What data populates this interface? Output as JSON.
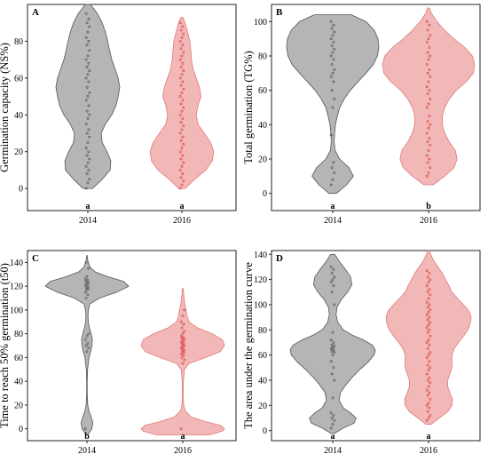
{
  "colors": {
    "y2014_fill": "#b4b5b7",
    "y2014_stroke": "#555555",
    "y2016_fill": "#f2b8b8",
    "y2016_stroke": "#e07b7b"
  },
  "chart_data": [
    {
      "type": "violin",
      "panel": "A",
      "ylabel": "Germination capacity (NS%)",
      "categories": [
        "2014",
        "2016"
      ],
      "letters": [
        "a",
        "a"
      ],
      "ylim": [
        -12,
        100
      ],
      "yticks": [
        0,
        20,
        40,
        60,
        80
      ],
      "series": [
        {
          "density": [
            [
              0,
              0.15
            ],
            [
              5,
              0.45
            ],
            [
              10,
              0.7
            ],
            [
              15,
              0.72
            ],
            [
              20,
              0.6
            ],
            [
              25,
              0.45
            ],
            [
              30,
              0.42
            ],
            [
              35,
              0.55
            ],
            [
              40,
              0.75
            ],
            [
              45,
              0.88
            ],
            [
              50,
              0.95
            ],
            [
              55,
              1.0
            ],
            [
              60,
              0.95
            ],
            [
              65,
              0.85
            ],
            [
              70,
              0.75
            ],
            [
              75,
              0.68
            ],
            [
              80,
              0.62
            ],
            [
              85,
              0.55
            ],
            [
              90,
              0.45
            ],
            [
              95,
              0.3
            ],
            [
              100,
              0.08
            ]
          ],
          "points": [
            0,
            3,
            5,
            8,
            10,
            12,
            14,
            16,
            18,
            20,
            22,
            25,
            28,
            30,
            32,
            35,
            38,
            40,
            42,
            45,
            48,
            50,
            52,
            55,
            58,
            60,
            62,
            64,
            66,
            68,
            70,
            72,
            75,
            78,
            80,
            82,
            85,
            88,
            90,
            92,
            95
          ]
        },
        {
          "density": [
            [
              0,
              0.1
            ],
            [
              5,
              0.4
            ],
            [
              10,
              0.75
            ],
            [
              15,
              0.95
            ],
            [
              20,
              1.0
            ],
            [
              25,
              0.9
            ],
            [
              30,
              0.7
            ],
            [
              35,
              0.5
            ],
            [
              40,
              0.45
            ],
            [
              45,
              0.5
            ],
            [
              50,
              0.6
            ],
            [
              55,
              0.55
            ],
            [
              60,
              0.45
            ],
            [
              65,
              0.35
            ],
            [
              70,
              0.3
            ],
            [
              75,
              0.28
            ],
            [
              80,
              0.25
            ],
            [
              85,
              0.18
            ],
            [
              90,
              0.1
            ],
            [
              93,
              0.03
            ]
          ],
          "points": [
            0,
            2,
            4,
            6,
            8,
            10,
            12,
            14,
            16,
            18,
            20,
            22,
            24,
            26,
            28,
            30,
            32,
            34,
            36,
            38,
            40,
            42,
            44,
            46,
            48,
            50,
            52,
            54,
            56,
            58,
            60,
            62,
            64,
            66,
            68,
            70,
            72,
            74,
            76,
            78,
            80,
            82,
            84,
            86,
            88,
            90
          ]
        }
      ]
    },
    {
      "type": "violin",
      "panel": "B",
      "ylabel": "Total germination (TG%)",
      "categories": [
        "2014",
        "2016"
      ],
      "letters": [
        "a",
        "b"
      ],
      "ylim": [
        -10,
        110
      ],
      "yticks": [
        0,
        20,
        40,
        60,
        80,
        100
      ],
      "series": [
        {
          "density": [
            [
              0,
              0.08
            ],
            [
              5,
              0.3
            ],
            [
              10,
              0.45
            ],
            [
              15,
              0.35
            ],
            [
              20,
              0.15
            ],
            [
              25,
              0.05
            ],
            [
              30,
              0.03
            ],
            [
              35,
              0.04
            ],
            [
              40,
              0.06
            ],
            [
              45,
              0.1
            ],
            [
              50,
              0.15
            ],
            [
              55,
              0.25
            ],
            [
              60,
              0.38
            ],
            [
              65,
              0.55
            ],
            [
              70,
              0.72
            ],
            [
              75,
              0.88
            ],
            [
              80,
              0.97
            ],
            [
              85,
              1.0
            ],
            [
              90,
              0.98
            ],
            [
              95,
              0.9
            ],
            [
              100,
              0.72
            ],
            [
              104,
              0.4
            ]
          ],
          "points": [
            5,
            8,
            12,
            15,
            18,
            34,
            50,
            55,
            60,
            65,
            68,
            70,
            72,
            75,
            78,
            80,
            82,
            84,
            86,
            88,
            90,
            92,
            94,
            96,
            98,
            100
          ]
        },
        {
          "density": [
            [
              5,
              0.1
            ],
            [
              10,
              0.35
            ],
            [
              15,
              0.55
            ],
            [
              20,
              0.62
            ],
            [
              25,
              0.58
            ],
            [
              30,
              0.45
            ],
            [
              35,
              0.35
            ],
            [
              40,
              0.3
            ],
            [
              45,
              0.3
            ],
            [
              50,
              0.35
            ],
            [
              55,
              0.45
            ],
            [
              60,
              0.6
            ],
            [
              65,
              0.82
            ],
            [
              70,
              0.97
            ],
            [
              75,
              1.0
            ],
            [
              80,
              0.95
            ],
            [
              85,
              0.78
            ],
            [
              90,
              0.55
            ],
            [
              95,
              0.35
            ],
            [
              100,
              0.18
            ],
            [
              105,
              0.06
            ],
            [
              108,
              0.02
            ]
          ],
          "points": [
            10,
            12,
            15,
            18,
            20,
            22,
            25,
            28,
            30,
            32,
            35,
            38,
            40,
            42,
            45,
            50,
            52,
            55,
            58,
            60,
            62,
            65,
            68,
            70,
            72,
            75,
            78,
            80,
            82,
            85,
            88,
            90,
            92,
            95,
            98,
            100
          ]
        }
      ]
    },
    {
      "type": "violin",
      "panel": "C",
      "ylabel": "Time to reach 50% germination (t50)",
      "categories": [
        "2014",
        "2016"
      ],
      "letters": [
        "b",
        "a"
      ],
      "ylim": [
        -10,
        150
      ],
      "yticks": [
        0,
        20,
        40,
        60,
        80,
        100,
        120,
        140
      ],
      "series": [
        {
          "density": [
            [
              -5,
              0.02
            ],
            [
              0,
              0.12
            ],
            [
              5,
              0.14
            ],
            [
              10,
              0.1
            ],
            [
              15,
              0.05
            ],
            [
              20,
              0.02
            ],
            [
              30,
              0.006
            ],
            [
              40,
              0.006
            ],
            [
              50,
              0.015
            ],
            [
              60,
              0.05
            ],
            [
              65,
              0.09
            ],
            [
              70,
              0.12
            ],
            [
              75,
              0.13
            ],
            [
              80,
              0.1
            ],
            [
              85,
              0.06
            ],
            [
              90,
              0.03
            ],
            [
              95,
              0.025
            ],
            [
              100,
              0.035
            ],
            [
              105,
              0.07
            ],
            [
              110,
              0.3
            ],
            [
              115,
              0.72
            ],
            [
              120,
              1.0
            ],
            [
              124,
              0.88
            ],
            [
              128,
              0.5
            ],
            [
              132,
              0.2
            ],
            [
              136,
              0.07
            ],
            [
              142,
              0.02
            ],
            [
              146,
              0.005
            ]
          ],
          "points": [
            0,
            65,
            68,
            70,
            72,
            75,
            78,
            80,
            110,
            113,
            115,
            117,
            118,
            119,
            120,
            121,
            122,
            123,
            124,
            125,
            126,
            128,
            135,
            140
          ]
        },
        {
          "density": [
            [
              -5,
              0.65
            ],
            [
              -2,
              0.95
            ],
            [
              0,
              1.0
            ],
            [
              3,
              0.9
            ],
            [
              6,
              0.55
            ],
            [
              10,
              0.2
            ],
            [
              15,
              0.06
            ],
            [
              20,
              0.02
            ],
            [
              30,
              0.01
            ],
            [
              40,
              0.015
            ],
            [
              50,
              0.04
            ],
            [
              55,
              0.15
            ],
            [
              60,
              0.55
            ],
            [
              65,
              0.9
            ],
            [
              70,
              1.0
            ],
            [
              75,
              0.95
            ],
            [
              80,
              0.7
            ],
            [
              85,
              0.35
            ],
            [
              90,
              0.15
            ],
            [
              95,
              0.1
            ],
            [
              100,
              0.08
            ],
            [
              105,
              0.05
            ],
            [
              110,
              0.03
            ],
            [
              118,
              0.01
            ]
          ],
          "points": [
            0,
            55,
            58,
            60,
            62,
            63,
            64,
            65,
            66,
            67,
            68,
            69,
            70,
            71,
            72,
            73,
            74,
            75,
            76,
            77,
            78,
            80,
            82,
            85,
            88,
            90,
            95,
            100
          ]
        }
      ]
    },
    {
      "type": "violin",
      "panel": "D",
      "ylabel": "The area under the germination curve",
      "categories": [
        "2014",
        "2016"
      ],
      "letters": [
        "a",
        "a"
      ],
      "ylim": [
        -8,
        143
      ],
      "yticks": [
        0,
        20,
        40,
        60,
        80,
        100,
        120,
        140
      ],
      "series": [
        {
          "density": [
            [
              -2,
              0.05
            ],
            [
              2,
              0.25
            ],
            [
              6,
              0.5
            ],
            [
              10,
              0.55
            ],
            [
              14,
              0.42
            ],
            [
              18,
              0.25
            ],
            [
              24,
              0.15
            ],
            [
              30,
              0.18
            ],
            [
              36,
              0.3
            ],
            [
              42,
              0.45
            ],
            [
              48,
              0.62
            ],
            [
              54,
              0.82
            ],
            [
              60,
              0.97
            ],
            [
              64,
              1.0
            ],
            [
              68,
              0.93
            ],
            [
              72,
              0.72
            ],
            [
              76,
              0.45
            ],
            [
              80,
              0.25
            ],
            [
              86,
              0.12
            ],
            [
              92,
              0.08
            ],
            [
              98,
              0.1
            ],
            [
              104,
              0.2
            ],
            [
              110,
              0.35
            ],
            [
              116,
              0.45
            ],
            [
              122,
              0.42
            ],
            [
              128,
              0.3
            ],
            [
              134,
              0.16
            ],
            [
              140,
              0.05
            ]
          ],
          "points": [
            2,
            5,
            8,
            10,
            12,
            14,
            26,
            40,
            45,
            50,
            55,
            60,
            62,
            63,
            64,
            65,
            66,
            67,
            68,
            70,
            72,
            78,
            100,
            110,
            115,
            118,
            120,
            122,
            125,
            128,
            130
          ]
        },
        {
          "density": [
            [
              5,
              0.06
            ],
            [
              10,
              0.25
            ],
            [
              15,
              0.45
            ],
            [
              20,
              0.55
            ],
            [
              25,
              0.56
            ],
            [
              30,
              0.5
            ],
            [
              35,
              0.45
            ],
            [
              40,
              0.45
            ],
            [
              45,
              0.5
            ],
            [
              50,
              0.55
            ],
            [
              55,
              0.55
            ],
            [
              60,
              0.55
            ],
            [
              65,
              0.6
            ],
            [
              70,
              0.7
            ],
            [
              75,
              0.82
            ],
            [
              80,
              0.92
            ],
            [
              85,
              0.98
            ],
            [
              90,
              1.0
            ],
            [
              95,
              0.95
            ],
            [
              100,
              0.82
            ],
            [
              105,
              0.68
            ],
            [
              110,
              0.55
            ],
            [
              115,
              0.48
            ],
            [
              120,
              0.4
            ],
            [
              125,
              0.32
            ],
            [
              130,
              0.22
            ],
            [
              135,
              0.12
            ],
            [
              140,
              0.05
            ],
            [
              143,
              0.01
            ]
          ],
          "points": [
            8,
            10,
            12,
            15,
            18,
            20,
            22,
            25,
            28,
            30,
            32,
            35,
            38,
            40,
            42,
            45,
            48,
            50,
            52,
            55,
            58,
            60,
            62,
            65,
            68,
            70,
            72,
            75,
            78,
            80,
            82,
            84,
            86,
            88,
            90,
            92,
            94,
            96,
            98,
            100,
            102,
            105,
            108,
            110,
            112,
            115,
            118,
            120,
            122,
            125,
            127
          ]
        }
      ]
    }
  ]
}
